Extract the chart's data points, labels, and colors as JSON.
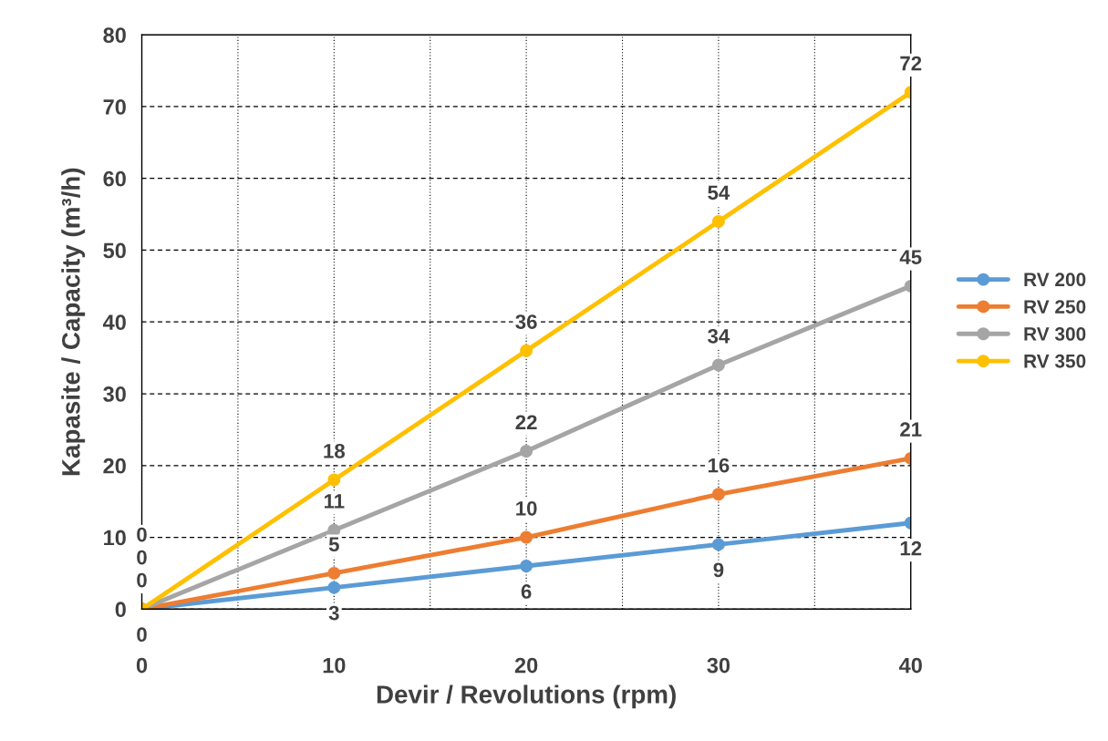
{
  "chart_data": {
    "type": "line",
    "xlabel": "Devir / Revolutions (rpm)",
    "ylabel": "Kapasite / Capacity (m³/h)",
    "x": [
      0,
      10,
      20,
      30,
      40
    ],
    "series": [
      {
        "name": "RV 200",
        "color": "#5b9bd5",
        "values": [
          0,
          3,
          6,
          9,
          12
        ]
      },
      {
        "name": "RV 250",
        "color": "#ed7d31",
        "values": [
          0,
          5,
          10,
          16,
          21
        ]
      },
      {
        "name": "RV 300",
        "color": "#a5a5a5",
        "values": [
          0,
          11,
          22,
          34,
          45
        ]
      },
      {
        "name": "RV 350",
        "color": "#ffc000",
        "values": [
          0,
          18,
          36,
          54,
          72
        ]
      }
    ],
    "xlim": [
      0,
      40
    ],
    "ylim": [
      0,
      80
    ],
    "xticks": [
      0,
      {
        "value": 5,
        "label": null
      },
      10,
      {
        "value": 15,
        "label": null
      },
      20,
      {
        "value": 25,
        "label": null
      },
      30,
      {
        "value": 35,
        "label": null
      },
      40
    ],
    "yticks": [
      0,
      10,
      20,
      30,
      40,
      50,
      60,
      70,
      80
    ],
    "grid": true,
    "legend": "right",
    "marker": "circle",
    "line_style": "solid",
    "data_labels": true
  }
}
